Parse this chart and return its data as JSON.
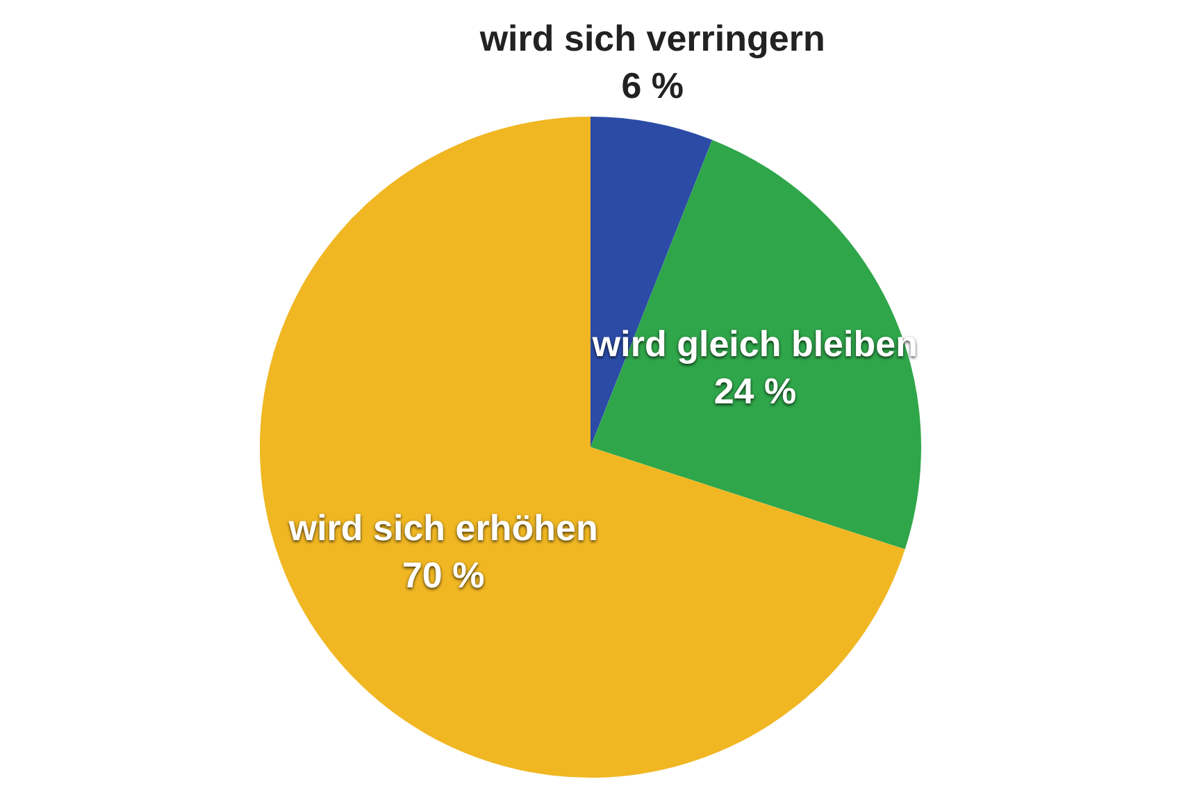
{
  "chart_data": {
    "type": "pie",
    "categories": [
      "wird sich verringern",
      "wird gleich bleiben",
      "wird sich erhöhen"
    ],
    "values": [
      6,
      24,
      70
    ],
    "value_labels": [
      "6 %",
      "24 %",
      "70 %"
    ],
    "colors": [
      "#2b4ba6",
      "#2fa64a",
      "#f0b723"
    ],
    "legend": false
  }
}
